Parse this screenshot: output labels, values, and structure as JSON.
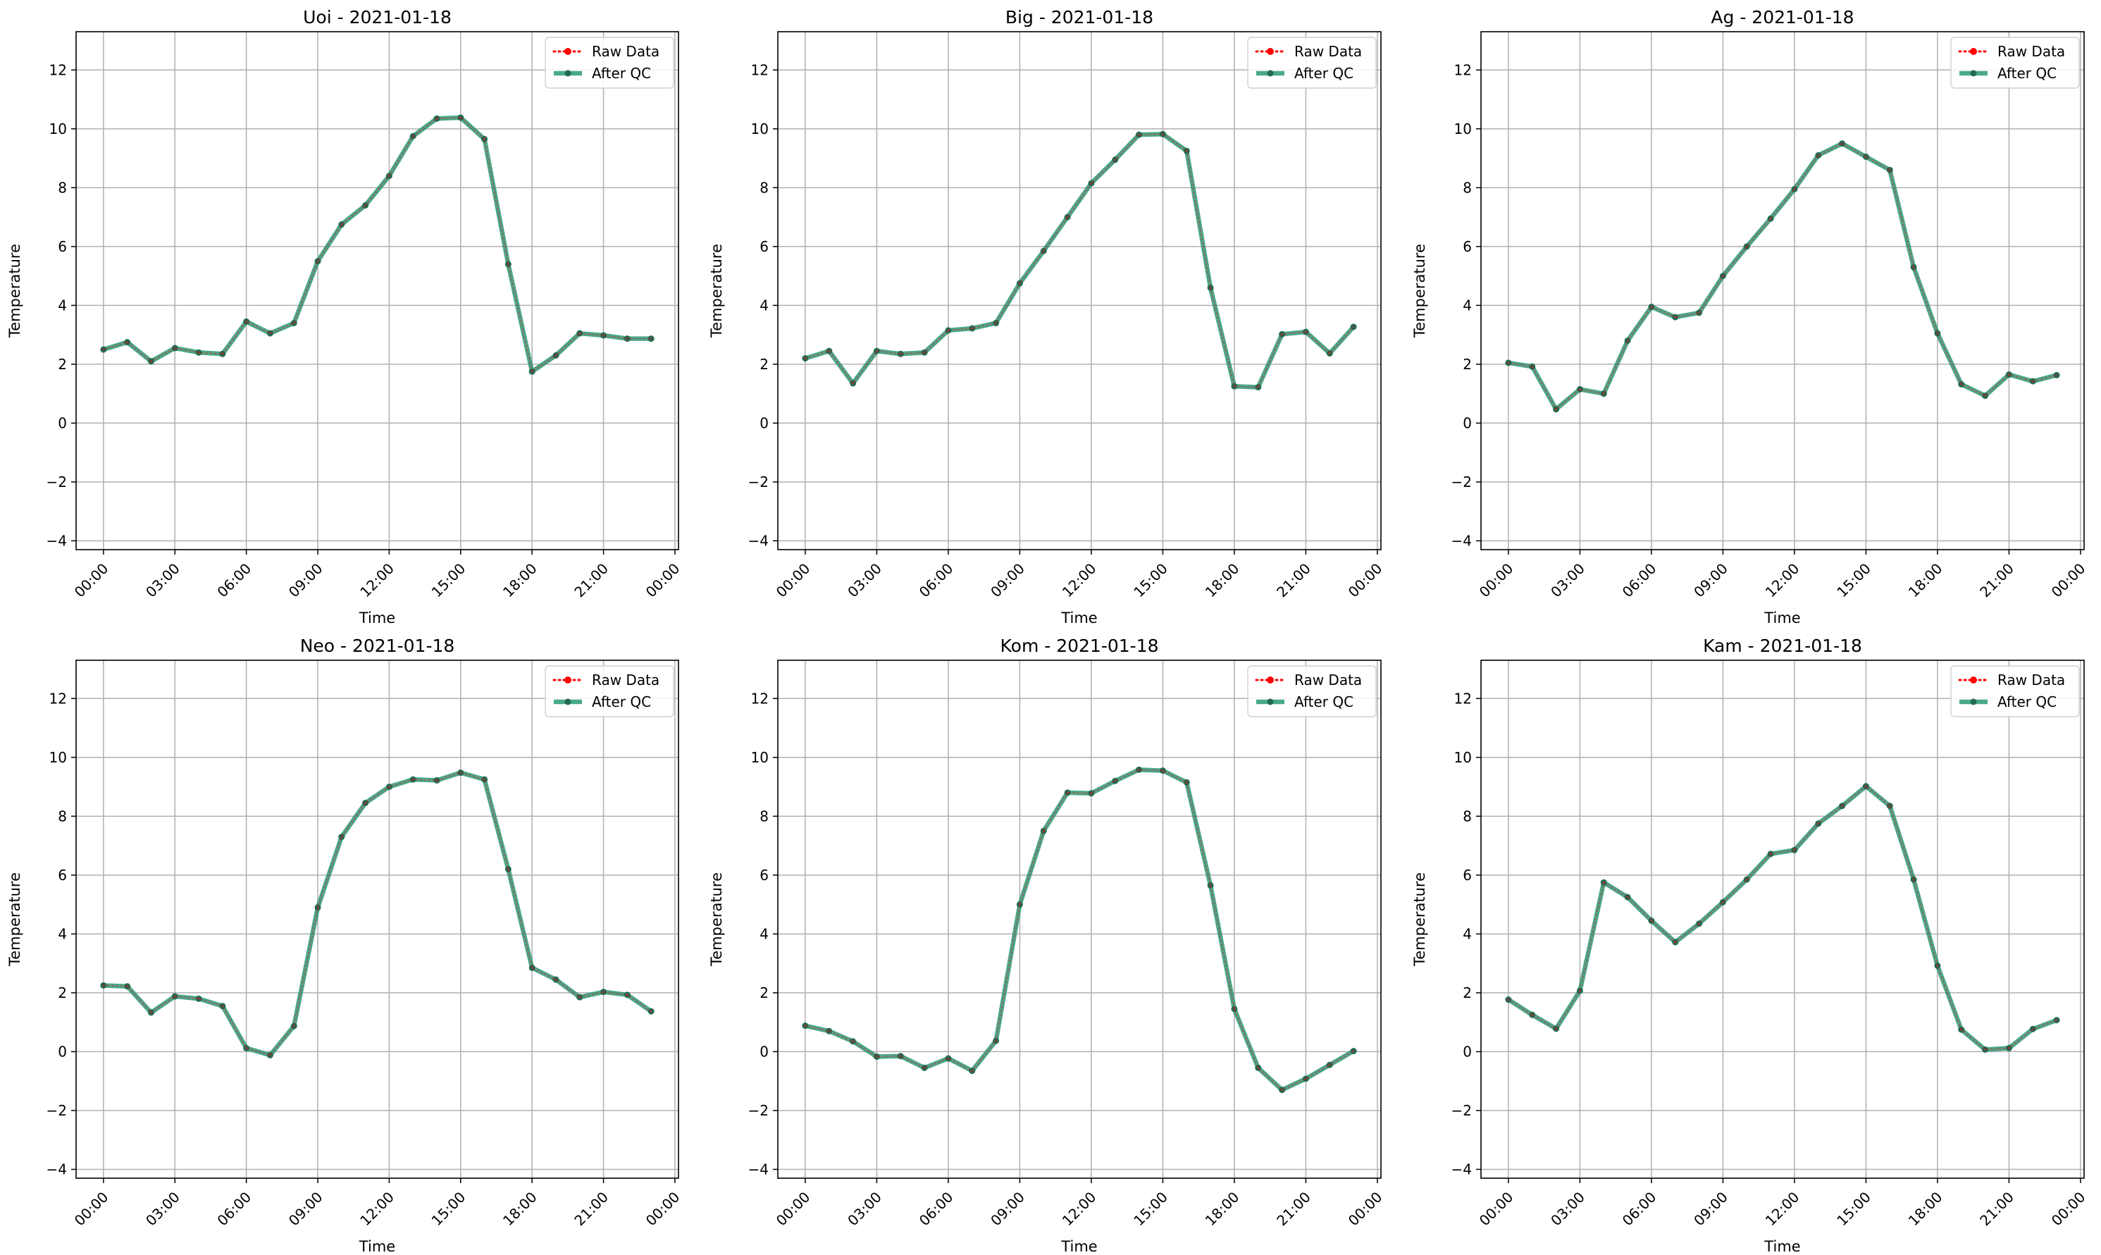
{
  "chart_data": [
    {
      "type": "line",
      "title": "Uoi - 2021-01-18",
      "xlabel": "Time",
      "ylabel": "Temperature",
      "x": [
        "00:00",
        "01:00",
        "02:00",
        "03:00",
        "04:00",
        "05:00",
        "06:00",
        "07:00",
        "08:00",
        "09:00",
        "10:00",
        "11:00",
        "12:00",
        "13:00",
        "14:00",
        "15:00",
        "16:00",
        "17:00",
        "18:00",
        "19:00",
        "20:00",
        "21:00",
        "22:00",
        "23:00"
      ],
      "series": [
        {
          "name": "Raw Data",
          "values": [
            2.5,
            2.75,
            2.1,
            2.55,
            2.4,
            2.35,
            3.45,
            3.05,
            3.4,
            5.5,
            6.75,
            7.4,
            8.4,
            9.75,
            10.35,
            10.38,
            9.65,
            5.4,
            1.75,
            2.3,
            3.05,
            2.98,
            2.87,
            2.87
          ]
        },
        {
          "name": "After QC",
          "values": [
            2.5,
            2.75,
            2.1,
            2.55,
            2.4,
            2.35,
            3.45,
            3.05,
            3.4,
            5.5,
            6.75,
            7.4,
            8.4,
            9.75,
            10.35,
            10.38,
            9.65,
            5.4,
            1.75,
            2.3,
            3.05,
            2.98,
            2.87,
            2.87
          ]
        }
      ],
      "xticks": [
        "00:00",
        "03:00",
        "06:00",
        "09:00",
        "12:00",
        "15:00",
        "18:00",
        "21:00",
        "00:00"
      ],
      "yticks": [
        -4,
        -2,
        0,
        2,
        4,
        6,
        8,
        10,
        12
      ],
      "ylim": [
        -4.3,
        13.3
      ],
      "grid": true,
      "legend": "top-right"
    },
    {
      "type": "line",
      "title": "Big - 2021-01-18",
      "xlabel": "Time",
      "ylabel": "Temperature",
      "x": [
        "00:00",
        "01:00",
        "02:00",
        "03:00",
        "04:00",
        "05:00",
        "06:00",
        "07:00",
        "08:00",
        "09:00",
        "10:00",
        "11:00",
        "12:00",
        "13:00",
        "14:00",
        "15:00",
        "16:00",
        "17:00",
        "18:00",
        "19:00",
        "20:00",
        "21:00",
        "22:00",
        "23:00"
      ],
      "series": [
        {
          "name": "Raw Data",
          "values": [
            2.2,
            2.45,
            1.35,
            2.45,
            2.35,
            2.4,
            3.15,
            3.22,
            3.4,
            4.75,
            5.85,
            7.0,
            8.15,
            8.95,
            9.8,
            9.82,
            9.25,
            4.6,
            1.25,
            1.22,
            3.02,
            3.1,
            2.37,
            3.27
          ]
        },
        {
          "name": "After QC",
          "values": [
            2.2,
            2.45,
            1.35,
            2.45,
            2.35,
            2.4,
            3.15,
            3.22,
            3.4,
            4.75,
            5.85,
            7.0,
            8.15,
            8.95,
            9.8,
            9.82,
            9.25,
            4.6,
            1.25,
            1.22,
            3.02,
            3.1,
            2.37,
            3.27
          ]
        }
      ],
      "xticks": [
        "00:00",
        "03:00",
        "06:00",
        "09:00",
        "12:00",
        "15:00",
        "18:00",
        "21:00",
        "00:00"
      ],
      "yticks": [
        -4,
        -2,
        0,
        2,
        4,
        6,
        8,
        10,
        12
      ],
      "ylim": [
        -4.3,
        13.3
      ],
      "grid": true,
      "legend": "top-right"
    },
    {
      "type": "line",
      "title": "Ag - 2021-01-18",
      "xlabel": "Time",
      "ylabel": "Temperature",
      "x": [
        "00:00",
        "01:00",
        "02:00",
        "03:00",
        "04:00",
        "05:00",
        "06:00",
        "07:00",
        "08:00",
        "09:00",
        "10:00",
        "11:00",
        "12:00",
        "13:00",
        "14:00",
        "15:00",
        "16:00",
        "17:00",
        "18:00",
        "19:00",
        "20:00",
        "21:00",
        "22:00",
        "23:00"
      ],
      "series": [
        {
          "name": "Raw Data",
          "values": [
            2.05,
            1.92,
            0.47,
            1.15,
            1.0,
            2.8,
            3.95,
            3.6,
            3.75,
            5.0,
            6.0,
            6.95,
            7.95,
            9.1,
            9.5,
            9.05,
            8.6,
            5.3,
            3.05,
            1.32,
            0.93,
            1.65,
            1.42,
            1.63
          ]
        },
        {
          "name": "After QC",
          "values": [
            2.05,
            1.92,
            0.47,
            1.15,
            1.0,
            2.8,
            3.95,
            3.6,
            3.75,
            5.0,
            6.0,
            6.95,
            7.95,
            9.1,
            9.5,
            9.05,
            8.6,
            5.3,
            3.05,
            1.32,
            0.93,
            1.65,
            1.42,
            1.63
          ]
        }
      ],
      "xticks": [
        "00:00",
        "03:00",
        "06:00",
        "09:00",
        "12:00",
        "15:00",
        "18:00",
        "21:00",
        "00:00"
      ],
      "yticks": [
        -4,
        -2,
        0,
        2,
        4,
        6,
        8,
        10,
        12
      ],
      "ylim": [
        -4.3,
        13.3
      ],
      "grid": true,
      "legend": "top-right"
    },
    {
      "type": "line",
      "title": "Neo - 2021-01-18",
      "xlabel": "Time",
      "ylabel": "Temperature",
      "x": [
        "00:00",
        "01:00",
        "02:00",
        "03:00",
        "04:00",
        "05:00",
        "06:00",
        "07:00",
        "08:00",
        "09:00",
        "10:00",
        "11:00",
        "12:00",
        "13:00",
        "14:00",
        "15:00",
        "16:00",
        "17:00",
        "18:00",
        "19:00",
        "20:00",
        "21:00",
        "22:00",
        "23:00"
      ],
      "series": [
        {
          "name": "Raw Data",
          "values": [
            2.25,
            2.22,
            1.33,
            1.88,
            1.8,
            1.55,
            0.12,
            -0.12,
            0.87,
            4.9,
            7.3,
            8.45,
            9.0,
            9.25,
            9.22,
            9.48,
            9.25,
            6.2,
            2.85,
            2.45,
            1.85,
            2.03,
            1.93,
            1.37
          ]
        },
        {
          "name": "After QC",
          "values": [
            2.25,
            2.22,
            1.33,
            1.88,
            1.8,
            1.55,
            0.12,
            -0.12,
            0.87,
            4.9,
            7.3,
            8.45,
            9.0,
            9.25,
            9.22,
            9.48,
            9.25,
            6.2,
            2.85,
            2.45,
            1.85,
            2.03,
            1.93,
            1.37
          ]
        }
      ],
      "xticks": [
        "00:00",
        "03:00",
        "06:00",
        "09:00",
        "12:00",
        "15:00",
        "18:00",
        "21:00",
        "00:00"
      ],
      "yticks": [
        -4,
        -2,
        0,
        2,
        4,
        6,
        8,
        10,
        12
      ],
      "ylim": [
        -4.3,
        13.3
      ],
      "grid": true,
      "legend": "top-right"
    },
    {
      "type": "line",
      "title": "Kom - 2021-01-18",
      "xlabel": "Time",
      "ylabel": "Temperature",
      "x": [
        "00:00",
        "01:00",
        "02:00",
        "03:00",
        "04:00",
        "05:00",
        "06:00",
        "07:00",
        "08:00",
        "09:00",
        "10:00",
        "11:00",
        "12:00",
        "13:00",
        "14:00",
        "15:00",
        "16:00",
        "17:00",
        "18:00",
        "19:00",
        "20:00",
        "21:00",
        "22:00",
        "23:00"
      ],
      "series": [
        {
          "name": "Raw Data",
          "values": [
            0.88,
            0.7,
            0.35,
            -0.17,
            -0.15,
            -0.55,
            -0.23,
            -0.65,
            0.37,
            5.0,
            7.5,
            8.8,
            8.78,
            9.2,
            9.58,
            9.55,
            9.15,
            5.65,
            1.45,
            -0.55,
            -1.3,
            -0.92,
            -0.45,
            0.02
          ]
        },
        {
          "name": "After QC",
          "values": [
            0.88,
            0.7,
            0.35,
            -0.17,
            -0.15,
            -0.55,
            -0.23,
            -0.65,
            0.37,
            5.0,
            7.5,
            8.8,
            8.78,
            9.2,
            9.58,
            9.55,
            9.15,
            5.65,
            1.45,
            -0.55,
            -1.3,
            -0.92,
            -0.45,
            0.02
          ]
        }
      ],
      "xticks": [
        "00:00",
        "03:00",
        "06:00",
        "09:00",
        "12:00",
        "15:00",
        "18:00",
        "21:00",
        "00:00"
      ],
      "yticks": [
        -4,
        -2,
        0,
        2,
        4,
        6,
        8,
        10,
        12
      ],
      "ylim": [
        -4.3,
        13.3
      ],
      "grid": true,
      "legend": "top-right"
    },
    {
      "type": "line",
      "title": "Kam - 2021-01-18",
      "xlabel": "Time",
      "ylabel": "Temperature",
      "x": [
        "00:00",
        "01:00",
        "02:00",
        "03:00",
        "04:00",
        "05:00",
        "06:00",
        "07:00",
        "08:00",
        "09:00",
        "10:00",
        "11:00",
        "12:00",
        "13:00",
        "14:00",
        "15:00",
        "16:00",
        "17:00",
        "18:00",
        "19:00",
        "20:00",
        "21:00",
        "22:00",
        "23:00"
      ],
      "series": [
        {
          "name": "Raw Data",
          "values": [
            1.77,
            1.25,
            0.78,
            2.07,
            5.75,
            5.25,
            4.45,
            3.72,
            4.35,
            5.08,
            5.85,
            6.72,
            6.85,
            7.75,
            8.35,
            9.02,
            8.35,
            5.85,
            2.92,
            0.75,
            0.07,
            0.12,
            0.77,
            1.07
          ]
        },
        {
          "name": "After QC",
          "values": [
            1.77,
            1.25,
            0.78,
            2.07,
            5.75,
            5.25,
            4.45,
            3.72,
            4.35,
            5.08,
            5.85,
            6.72,
            6.85,
            7.75,
            8.35,
            9.02,
            8.35,
            5.85,
            2.92,
            0.75,
            0.07,
            0.12,
            0.77,
            1.07
          ]
        }
      ],
      "xticks": [
        "00:00",
        "03:00",
        "06:00",
        "09:00",
        "12:00",
        "15:00",
        "18:00",
        "21:00",
        "00:00"
      ],
      "yticks": [
        -4,
        -2,
        0,
        2,
        4,
        6,
        8,
        10,
        12
      ],
      "ylim": [
        -4.3,
        13.3
      ],
      "grid": true,
      "legend": "top-right"
    }
  ],
  "colors": {
    "raw": "#ff0000",
    "qc": "#2a9a78",
    "qc_marker": "#236b55",
    "grid": "#b0b0b0",
    "axis": "#000000"
  }
}
